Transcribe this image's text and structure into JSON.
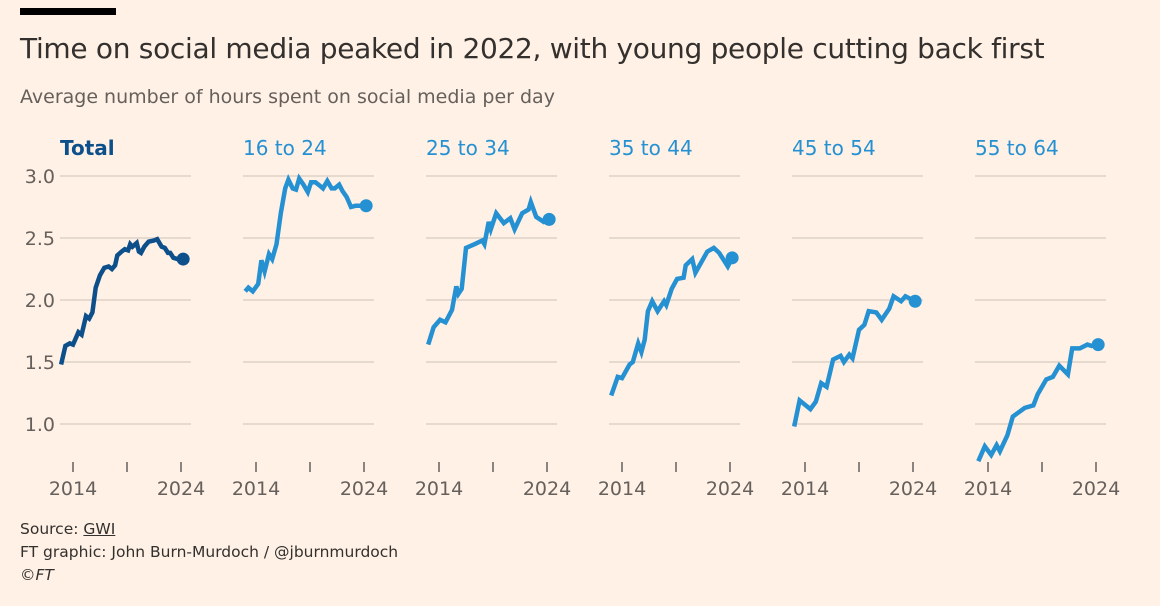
{
  "header": {
    "title": "Time on social media peaked in 2022, with young people cutting back first",
    "subtitle": "Average number of hours spent on social media per day"
  },
  "footer": {
    "source_label": "Source: ",
    "source_link": "GWI",
    "credit": "FT graphic: John Burn-Murdoch / @jburnmurdoch",
    "copyright": "©FT"
  },
  "colors": {
    "background": "#fff1e5",
    "total": "#0d4f8b",
    "age_group": "#2591d2",
    "grid": "#e6d9ce",
    "axis_text": "#66605c"
  },
  "chart_data": {
    "type": "line",
    "title": "Time on social media peaked in 2022, with young people cutting back first",
    "ylabel": "Average number of hours spent on social media per day",
    "ylim": [
      0.75,
      3.0
    ],
    "yticks": [
      "3.0",
      "2.5",
      "2.0",
      "1.5",
      "1.0"
    ],
    "ytick_values": [
      3.0,
      2.5,
      2.0,
      1.5,
      1.0
    ],
    "xlim": [
      2012.9,
      2024.3
    ],
    "xticks": [
      2014,
      2019,
      2024
    ],
    "xtick_labels": [
      "2014",
      "",
      "2024"
    ],
    "grid": true,
    "series": [
      {
        "name": "Total",
        "color": "#0d4f8b",
        "x": [
          2012.9,
          2013.3,
          2013.7,
          2014.0,
          2014.5,
          2014.8,
          2015.2,
          2015.5,
          2015.8,
          2016.1,
          2016.5,
          2016.9,
          2017.3,
          2017.6,
          2017.9,
          2018.1,
          2018.5,
          2018.8,
          2019.1,
          2019.3,
          2019.5,
          2019.9,
          2020.1,
          2020.3,
          2020.6,
          2021.0,
          2021.5,
          2021.8,
          2022.2,
          2022.5,
          2022.8,
          2023.0,
          2023.3,
          2023.7,
          2024.2
        ],
        "y": [
          1.48,
          1.63,
          1.65,
          1.64,
          1.74,
          1.72,
          1.87,
          1.85,
          1.9,
          2.1,
          2.2,
          2.26,
          2.27,
          2.25,
          2.28,
          2.36,
          2.39,
          2.41,
          2.4,
          2.45,
          2.43,
          2.46,
          2.39,
          2.38,
          2.43,
          2.47,
          2.48,
          2.49,
          2.43,
          2.42,
          2.38,
          2.38,
          2.34,
          2.33,
          2.33
        ]
      },
      {
        "name": "16 to 24",
        "color": "#2591d2",
        "x": [
          2013.0,
          2013.3,
          2013.7,
          2014.2,
          2014.5,
          2014.8,
          2015.2,
          2015.5,
          2015.9,
          2016.3,
          2016.7,
          2017.0,
          2017.4,
          2017.7,
          2018.0,
          2018.4,
          2018.8,
          2019.1,
          2019.5,
          2019.8,
          2020.2,
          2020.6,
          2021.0,
          2021.3,
          2021.7,
          2022.0,
          2022.4,
          2022.8,
          2023.2,
          2024.2
        ],
        "y": [
          2.07,
          2.1,
          2.07,
          2.13,
          2.32,
          2.23,
          2.37,
          2.33,
          2.45,
          2.7,
          2.9,
          2.97,
          2.9,
          2.89,
          2.98,
          2.93,
          2.87,
          2.95,
          2.95,
          2.93,
          2.9,
          2.96,
          2.9,
          2.9,
          2.93,
          2.88,
          2.83,
          2.75,
          2.76,
          2.76
        ]
      },
      {
        "name": "25 to 34",
        "color": "#2591d2",
        "x": [
          2013.0,
          2013.5,
          2014.1,
          2014.6,
          2015.2,
          2015.6,
          2015.8,
          2016.1,
          2016.5,
          2017.3,
          2018.0,
          2018.2,
          2018.6,
          2018.8,
          2019.3,
          2020.0,
          2020.6,
          2021.0,
          2021.7,
          2022.3,
          2022.5,
          2023.0,
          2023.7,
          2024.2
        ],
        "y": [
          1.64,
          1.78,
          1.84,
          1.82,
          1.92,
          2.11,
          2.05,
          2.09,
          2.42,
          2.45,
          2.48,
          2.45,
          2.63,
          2.57,
          2.7,
          2.62,
          2.66,
          2.57,
          2.7,
          2.73,
          2.79,
          2.67,
          2.63,
          2.65
        ]
      },
      {
        "name": "35 to 44",
        "color": "#2591d2",
        "x": [
          2013.0,
          2013.6,
          2014.0,
          2014.7,
          2015.0,
          2015.5,
          2015.8,
          2016.1,
          2016.4,
          2016.8,
          2017.3,
          2017.9,
          2018.1,
          2018.6,
          2019.1,
          2019.7,
          2019.9,
          2020.5,
          2020.8,
          2021.9,
          2022.5,
          2023.0,
          2023.8,
          2024.2
        ],
        "y": [
          1.23,
          1.38,
          1.37,
          1.48,
          1.5,
          1.65,
          1.58,
          1.68,
          1.91,
          1.99,
          1.91,
          1.99,
          1.96,
          2.09,
          2.17,
          2.18,
          2.28,
          2.33,
          2.22,
          2.39,
          2.42,
          2.38,
          2.27,
          2.34
        ]
      },
      {
        "name": "45 to 54",
        "color": "#2591d2",
        "x": [
          2013.0,
          2013.5,
          2014.5,
          2015.0,
          2015.5,
          2016.0,
          2016.6,
          2017.3,
          2017.6,
          2018.1,
          2018.4,
          2019.0,
          2019.5,
          2019.9,
          2020.6,
          2021.1,
          2021.8,
          2022.2,
          2022.9,
          2023.3,
          2024.2
        ],
        "y": [
          0.98,
          1.19,
          1.12,
          1.18,
          1.33,
          1.3,
          1.52,
          1.55,
          1.5,
          1.56,
          1.53,
          1.76,
          1.8,
          1.91,
          1.9,
          1.84,
          1.93,
          2.03,
          1.99,
          2.03,
          1.99
        ]
      },
      {
        "name": "55 to 64",
        "color": "#2591d2",
        "x": [
          2013.1,
          2013.7,
          2014.3,
          2014.8,
          2015.1,
          2015.8,
          2016.3,
          2017.4,
          2018.2,
          2018.6,
          2019.4,
          2020.0,
          2020.6,
          2021.4,
          2021.8,
          2022.5,
          2023.2,
          2023.6,
          2024.2
        ],
        "y": [
          0.7,
          0.82,
          0.75,
          0.83,
          0.78,
          0.91,
          1.06,
          1.13,
          1.15,
          1.24,
          1.36,
          1.38,
          1.47,
          1.4,
          1.61,
          1.61,
          1.64,
          1.63,
          1.64
        ]
      }
    ]
  }
}
